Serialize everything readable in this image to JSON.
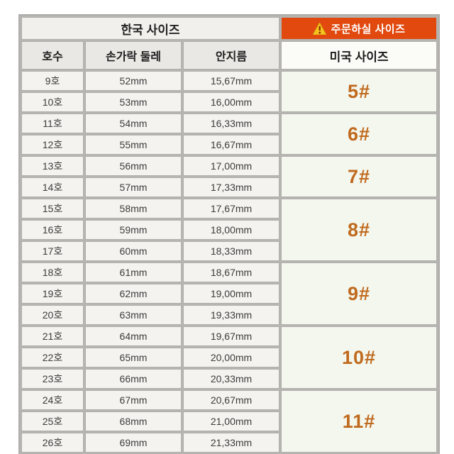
{
  "table": {
    "korea_header": "한국 사이즈",
    "order_header": "주문하실 사이즈",
    "columns": {
      "no": "호수",
      "circumference": "손가락 둘레",
      "inner_diameter": "안지름",
      "us_size": "미국 사이즈"
    },
    "rows": [
      {
        "no": "9호",
        "circumference": "52mm",
        "inner_diameter": "15,67mm"
      },
      {
        "no": "10호",
        "circumference": "53mm",
        "inner_diameter": "16,00mm"
      },
      {
        "no": "11호",
        "circumference": "54mm",
        "inner_diameter": "16,33mm"
      },
      {
        "no": "12호",
        "circumference": "55mm",
        "inner_diameter": "16,67mm"
      },
      {
        "no": "13호",
        "circumference": "56mm",
        "inner_diameter": "17,00mm"
      },
      {
        "no": "14호",
        "circumference": "57mm",
        "inner_diameter": "17,33mm"
      },
      {
        "no": "15호",
        "circumference": "58mm",
        "inner_diameter": "17,67mm"
      },
      {
        "no": "16호",
        "circumference": "59mm",
        "inner_diameter": "18,00mm"
      },
      {
        "no": "17호",
        "circumference": "60mm",
        "inner_diameter": "18,33mm"
      },
      {
        "no": "18호",
        "circumference": "61mm",
        "inner_diameter": "18,67mm"
      },
      {
        "no": "19호",
        "circumference": "62mm",
        "inner_diameter": "19,00mm"
      },
      {
        "no": "20호",
        "circumference": "63mm",
        "inner_diameter": "19,33mm"
      },
      {
        "no": "21호",
        "circumference": "64mm",
        "inner_diameter": "19,67mm"
      },
      {
        "no": "22호",
        "circumference": "65mm",
        "inner_diameter": "20,00mm"
      },
      {
        "no": "23호",
        "circumference": "66mm",
        "inner_diameter": "20,33mm"
      },
      {
        "no": "24호",
        "circumference": "67mm",
        "inner_diameter": "20,67mm"
      },
      {
        "no": "25호",
        "circumference": "68mm",
        "inner_diameter": "21,00mm"
      },
      {
        "no": "26호",
        "circumference": "69mm",
        "inner_diameter": "21,33mm"
      }
    ],
    "us_groups": [
      {
        "label": "5#",
        "span": 2
      },
      {
        "label": "6#",
        "span": 2
      },
      {
        "label": "7#",
        "span": 2
      },
      {
        "label": "8#",
        "span": 3
      },
      {
        "label": "9#",
        "span": 3
      },
      {
        "label": "10#",
        "span": 3
      },
      {
        "label": "11#",
        "span": 3
      }
    ],
    "colors": {
      "banner_bg": "#e1490f",
      "banner_text": "#ffffff",
      "us_number": "#c06a1e",
      "header_bg": "#e9e8e5",
      "cell_bg": "#f4f3f0",
      "us_cell_bg": "#f3f7ee",
      "border": "#b2b0ad"
    }
  }
}
